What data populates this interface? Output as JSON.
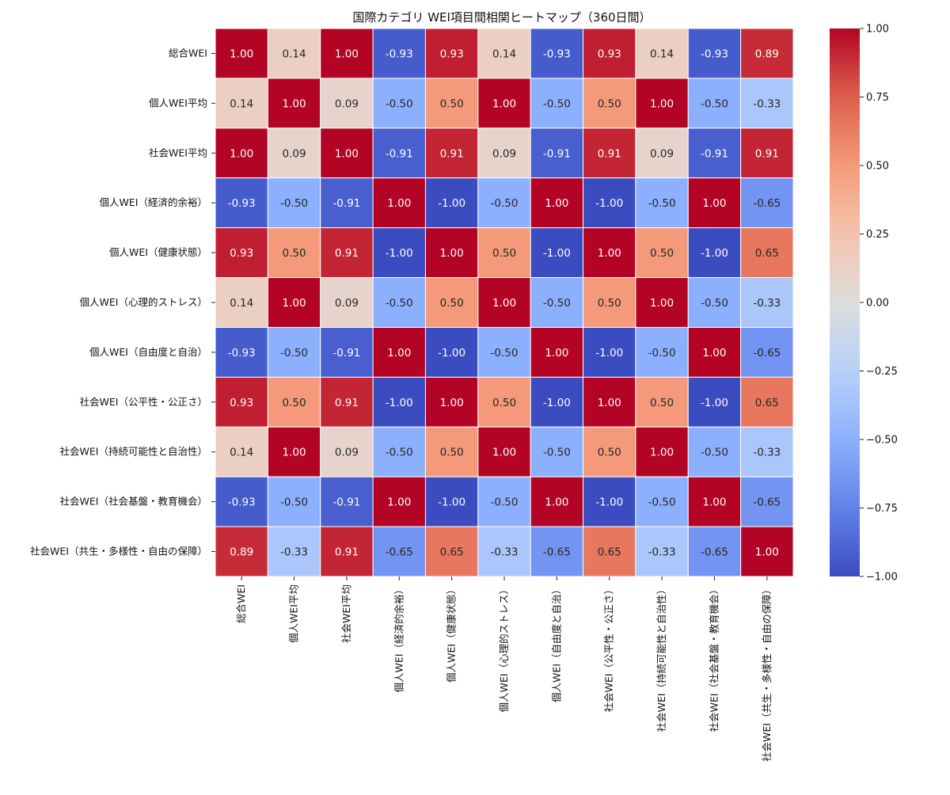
{
  "chart_data": {
    "type": "heatmap",
    "title": "国際カテゴリ WEI項目間相関ヒートマップ（360日間）",
    "labels": [
      "総合WEI",
      "個人WEI平均",
      "社会WEI平均",
      "個人WEI（経済的余裕）",
      "個人WEI（健康状態）",
      "個人WEI（心理的ストレス）",
      "個人WEI（自由度と自治）",
      "社会WEI（公平性・公正さ）",
      "社会WEI（持続可能性と自治性）",
      "社会WEI（社会基盤・教育機会）",
      "社会WEI（共生・多様性・自由の保障）"
    ],
    "matrix": [
      [
        1.0,
        0.14,
        1.0,
        -0.93,
        0.93,
        0.14,
        -0.93,
        0.93,
        0.14,
        -0.93,
        0.89
      ],
      [
        0.14,
        1.0,
        0.09,
        -0.5,
        0.5,
        1.0,
        -0.5,
        0.5,
        1.0,
        -0.5,
        -0.33
      ],
      [
        1.0,
        0.09,
        1.0,
        -0.91,
        0.91,
        0.09,
        -0.91,
        0.91,
        0.09,
        -0.91,
        0.91
      ],
      [
        -0.93,
        -0.5,
        -0.91,
        1.0,
        -1.0,
        -0.5,
        1.0,
        -1.0,
        -0.5,
        1.0,
        -0.65
      ],
      [
        0.93,
        0.5,
        0.91,
        -1.0,
        1.0,
        0.5,
        -1.0,
        1.0,
        0.5,
        -1.0,
        0.65
      ],
      [
        0.14,
        1.0,
        0.09,
        -0.5,
        0.5,
        1.0,
        -0.5,
        0.5,
        1.0,
        -0.5,
        -0.33
      ],
      [
        -0.93,
        -0.5,
        -0.91,
        1.0,
        -1.0,
        -0.5,
        1.0,
        -1.0,
        -0.5,
        1.0,
        -0.65
      ],
      [
        0.93,
        0.5,
        0.91,
        -1.0,
        1.0,
        0.5,
        -1.0,
        1.0,
        0.5,
        -1.0,
        0.65
      ],
      [
        0.14,
        1.0,
        0.09,
        -0.5,
        0.5,
        1.0,
        -0.5,
        0.5,
        1.0,
        -0.5,
        -0.33
      ],
      [
        -0.93,
        -0.5,
        -0.91,
        1.0,
        -1.0,
        -0.5,
        1.0,
        -1.0,
        -0.5,
        1.0,
        -0.65
      ],
      [
        0.89,
        -0.33,
        0.91,
        -0.65,
        0.65,
        -0.33,
        -0.65,
        0.65,
        -0.33,
        -0.65,
        1.0
      ]
    ],
    "value_range": [
      -1.0,
      1.0
    ],
    "colormap": "coolwarm",
    "annotate": true,
    "colorbar": {
      "position": "right",
      "ticks": [
        "1.00",
        "0.75",
        "0.50",
        "0.25",
        "0.00",
        "−0.25",
        "−0.50",
        "−0.75",
        "−1.00"
      ],
      "tick_values": [
        1.0,
        0.75,
        0.5,
        0.25,
        0.0,
        -0.25,
        -0.5,
        -0.75,
        -1.0
      ]
    },
    "colors": {
      "low": "#3b4cc0",
      "mid": "#dddddd",
      "high": "#b40426",
      "grid_line": "#ffffff"
    }
  }
}
